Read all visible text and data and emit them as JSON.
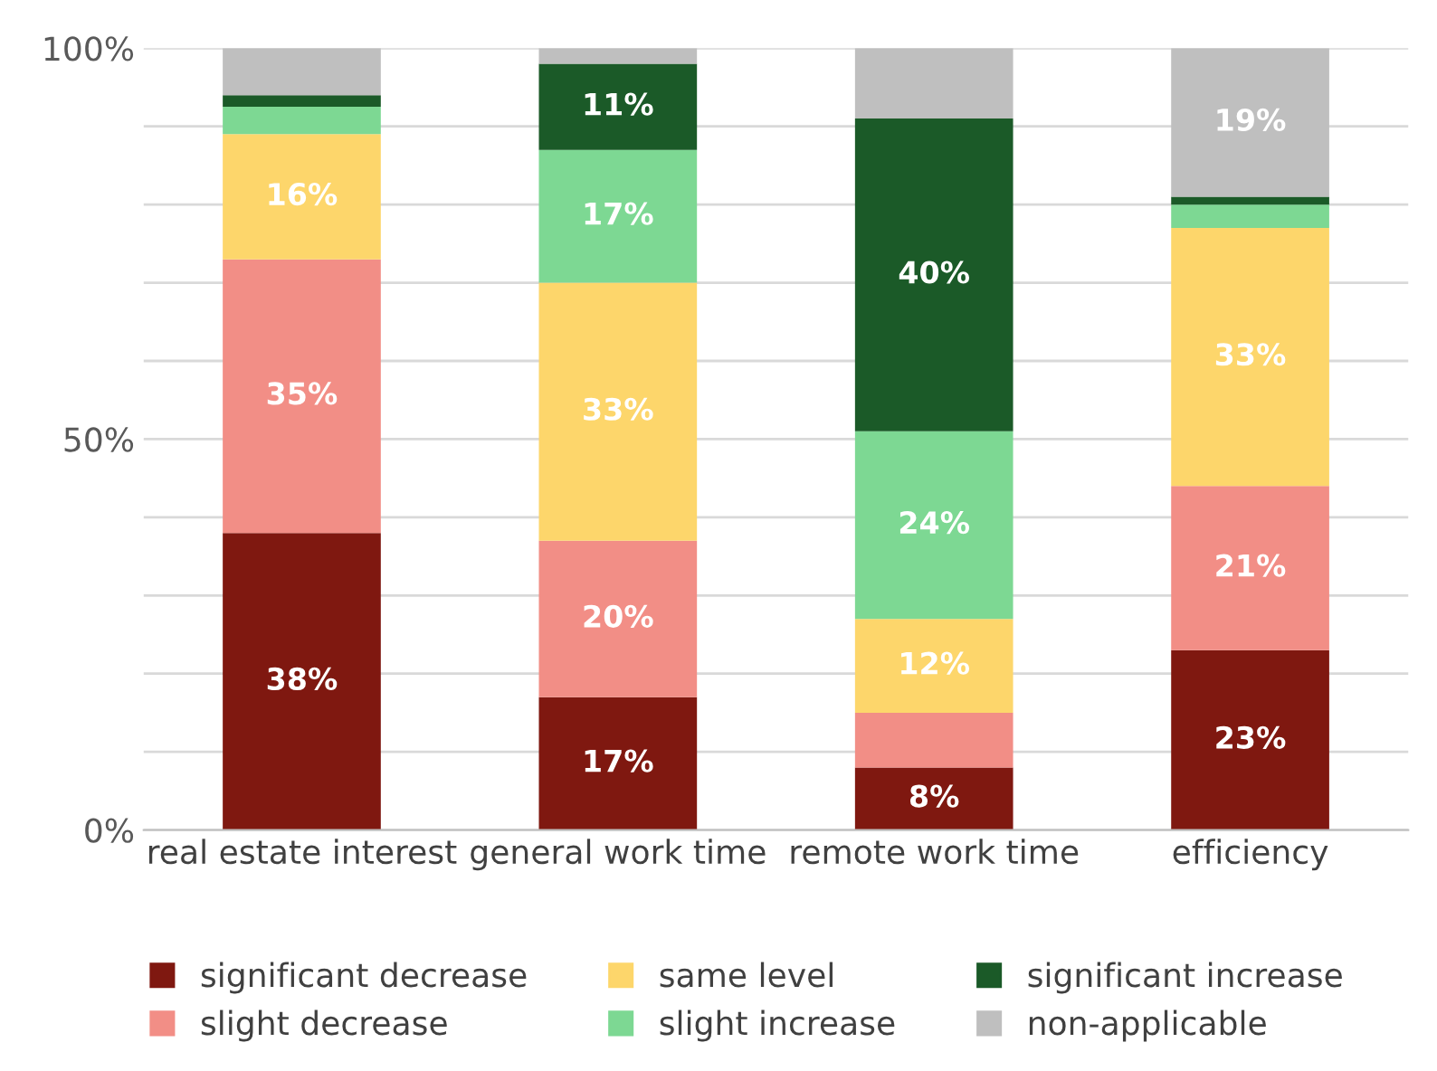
{
  "chart_data": {
    "type": "bar",
    "stacked": true,
    "categories": [
      "real estate interest",
      "general work time",
      "remote work time",
      "efficiency"
    ],
    "series": [
      {
        "name": "significant decrease",
        "color": "#7f1810",
        "values": [
          38,
          17,
          8,
          23
        ],
        "value_labels": [
          "38%",
          "17%",
          "8%",
          "23%"
        ]
      },
      {
        "name": "slight decrease",
        "color": "#f28e86",
        "values": [
          35,
          20,
          7,
          21
        ],
        "value_labels": [
          "35%",
          "20%",
          null,
          "21%"
        ]
      },
      {
        "name": "same level",
        "color": "#fdd66b",
        "values": [
          16,
          33,
          12,
          33
        ],
        "value_labels": [
          "16%",
          "33%",
          "12%",
          "33%"
        ]
      },
      {
        "name": "slight increase",
        "color": "#7dd893",
        "values": [
          3.5,
          17,
          24,
          3
        ],
        "value_labels": [
          null,
          "17%",
          "24%",
          null
        ]
      },
      {
        "name": "significant increase",
        "color": "#1b5a28",
        "values": [
          1.5,
          11,
          40,
          1
        ],
        "value_labels": [
          null,
          "11%",
          "40%",
          null
        ]
      },
      {
        "name": "non-applicable",
        "color": "#bfbfbf",
        "values": [
          6,
          2,
          9,
          19
        ],
        "value_labels": [
          null,
          null,
          null,
          "19%"
        ]
      }
    ],
    "ylim": [
      0,
      100
    ],
    "yticks": [
      {
        "value": 0,
        "label": "0%"
      },
      {
        "value": 10,
        "label": null
      },
      {
        "value": 20,
        "label": null
      },
      {
        "value": 30,
        "label": null
      },
      {
        "value": 40,
        "label": null
      },
      {
        "value": 50,
        "label": "50%"
      },
      {
        "value": 60,
        "label": null
      },
      {
        "value": 70,
        "label": null
      },
      {
        "value": 80,
        "label": null
      },
      {
        "value": 90,
        "label": null
      },
      {
        "value": 100,
        "label": "100%"
      }
    ],
    "grid": "y",
    "legend": "bottom"
  }
}
